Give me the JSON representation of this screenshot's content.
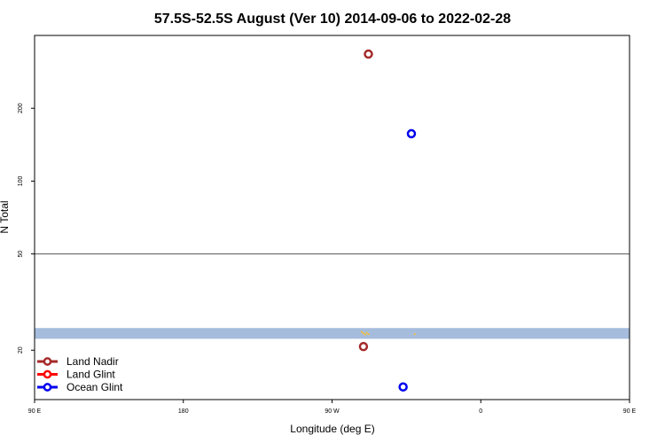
{
  "chart_data": {
    "type": "scatter",
    "title": "57.5S-52.5S August (Ver 10)   2014-09-06 to 2022-02-28",
    "xlabel": "Longitude (deg E)",
    "ylabel": "N Total",
    "x_scale": "longitude, 90E to 180 wrapping through 180 and 0",
    "y_scale": "log",
    "xlim": [
      90,
      450
    ],
    "ylim": [
      12.5,
      400
    ],
    "x_ticks": [
      {
        "value": 90,
        "label": "90 E"
      },
      {
        "value": 180,
        "label": "180"
      },
      {
        "value": 270,
        "label": "90 W"
      },
      {
        "value": 360,
        "label": "0"
      },
      {
        "value": 450,
        "label": "90 E"
      },
      {
        "value": 540,
        "label": "180"
      }
    ],
    "y_ticks": [
      {
        "value": 20,
        "label": "20"
      },
      {
        "value": 50,
        "label": "50"
      },
      {
        "value": 100,
        "label": "100"
      },
      {
        "value": 200,
        "label": "200"
      }
    ],
    "reference_line": 50,
    "shaded_band": {
      "y_min": 22.3,
      "y_max": 24.7,
      "color": "#a6bcdc"
    },
    "series": [
      {
        "name": "Land Nadir",
        "color": "#a52a2a",
        "points": [
          {
            "x": 292,
            "y": 335
          },
          {
            "x": 289,
            "y": 20.7
          }
        ]
      },
      {
        "name": "Land Glint",
        "color": "#ff0000",
        "points": []
      },
      {
        "name": "Ocean Glint",
        "color": "#0000ee",
        "points": [
          {
            "x": 318,
            "y": 157
          },
          {
            "x": 313,
            "y": 14.1
          }
        ]
      }
    ],
    "minor_marks": {
      "color": "#f0c040",
      "points": [
        {
          "x": 288,
          "y": 23.8
        },
        {
          "x": 289,
          "y": 23.5
        },
        {
          "x": 290,
          "y": 23.2
        },
        {
          "x": 292,
          "y": 23.3
        },
        {
          "x": 291,
          "y": 23.6
        },
        {
          "x": 320,
          "y": 23.3
        }
      ]
    },
    "legend": {
      "placement": "bottom-left",
      "entries": [
        {
          "label": "Land Nadir",
          "color": "#a52a2a"
        },
        {
          "label": "Land Glint",
          "color": "#ff0000"
        },
        {
          "label": "Ocean Glint",
          "color": "#0000ee"
        }
      ]
    }
  }
}
